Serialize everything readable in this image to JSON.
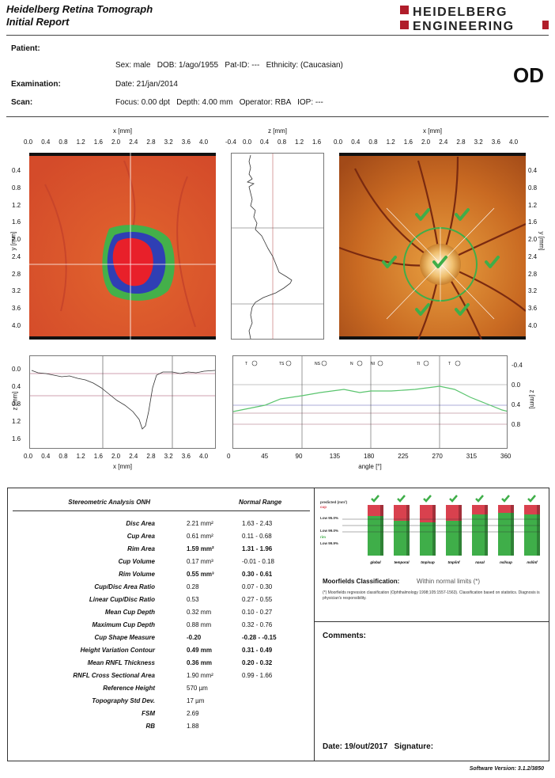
{
  "header": {
    "title_line1": "Heidelberg Retina Tomograph",
    "title_line2": "Initial Report",
    "logo_line1": "HEIDELBERG",
    "logo_line2": "ENGINEERING"
  },
  "patient": {
    "label": "Patient:",
    "details": "Sex: male   DOB: 1/ago/1955   Pat-ID: ---   Ethnicity: (Caucasian)",
    "eye": "OD"
  },
  "examination": {
    "label": "Examination:",
    "value": "Date: 21/jan/2014"
  },
  "scan": {
    "label": "Scan:",
    "value": "Focus: 0.00 dpt   Depth: 4.00 mm   Operator: RBA   IOP: ---"
  },
  "plots": {
    "x_label": "x [mm]",
    "y_label": "y [mm]",
    "z_label": "z [mm]",
    "angle_label": "angle [°]",
    "x_ticks": [
      "0.0",
      "0.4",
      "0.8",
      "1.2",
      "1.6",
      "2.0",
      "2.4",
      "2.8",
      "3.2",
      "3.6",
      "4.0"
    ],
    "y_ticks": [
      "0.4",
      "0.8",
      "1.2",
      "1.6",
      "2.0",
      "2.4",
      "2.8",
      "3.2",
      "3.6",
      "4.0"
    ],
    "z_ticks_top": [
      "-0.4",
      "0.0",
      "0.4",
      "0.8",
      "1.2",
      "1.6"
    ],
    "z_ticks_bottom": [
      "0.0",
      "0.4",
      "0.8",
      "1.2",
      "1.6"
    ],
    "z_ticks_right": [
      "-0.4",
      "0.0",
      "0.4",
      "0.8"
    ],
    "angle_ticks": [
      "0",
      "45",
      "90",
      "135",
      "180",
      "225",
      "270",
      "315",
      "360"
    ],
    "sector_labels": [
      "T",
      "TS",
      "NS",
      "N",
      "NI",
      "TI",
      "T"
    ]
  },
  "analysis": {
    "header_label": "Stereometric Analysis ONH",
    "header_range": "Normal Range",
    "rows": [
      {
        "label": "Disc Area",
        "value": "2.21  mm²",
        "range": "1.63 - 2.43",
        "bold": false
      },
      {
        "label": "Cup Area",
        "value": "0.61  mm²",
        "range": "0.11 - 0.68",
        "bold": false
      },
      {
        "label": "Rim Area",
        "value": "1.59  mm²",
        "range": "1.31 - 1.96",
        "bold": true
      },
      {
        "label": "Cup Volume",
        "value": "0.17  mm³",
        "range": "-0.01 - 0.18",
        "bold": false
      },
      {
        "label": "Rim Volume",
        "value": "0.55  mm³",
        "range": "0.30 - 0.61",
        "bold": true
      },
      {
        "label": "Cup/Disc Area Ratio",
        "value": "0.28",
        "range": "0.07 - 0.30",
        "bold": false
      },
      {
        "label": "Linear Cup/Disc Ratio",
        "value": "0.53",
        "range": "0.27 - 0.55",
        "bold": false
      },
      {
        "label": "Mean Cup Depth",
        "value": "0.32  mm",
        "range": "0.10 - 0.27",
        "bold": false
      },
      {
        "label": "Maximum Cup Depth",
        "value": "0.88  mm",
        "range": "0.32 - 0.76",
        "bold": false
      },
      {
        "label": "Cup Shape Measure",
        "value": "-0.20",
        "range": "-0.28 - -0.15",
        "bold": true
      },
      {
        "label": "Height Variation Contour",
        "value": "0.49  mm",
        "range": "0.31 - 0.49",
        "bold": true
      },
      {
        "label": "Mean RNFL Thickness",
        "value": "0.36  mm",
        "range": "0.20 - 0.32",
        "bold": true
      },
      {
        "label": "RNFL Cross Sectional Area",
        "value": "1.90  mm²",
        "range": "0.99 - 1.66",
        "bold": false
      },
      {
        "label": "Reference Height",
        "value": "570  µm",
        "range": "",
        "bold": false
      },
      {
        "label": "Topography Std Dev.",
        "value": "17  µm",
        "range": "",
        "bold": false
      },
      {
        "label": "FSM",
        "value": "2.69",
        "range": "",
        "bold": false
      },
      {
        "label": "RB",
        "value": "1.88",
        "range": "",
        "bold": false
      }
    ]
  },
  "moorfields": {
    "legend": [
      "predicted (mm²)",
      "cup",
      "Low 95.0%",
      "Low 99.0%",
      "rim",
      "Low 99.9%"
    ],
    "sectors": [
      "global",
      "temporal",
      "tmp/sup",
      "tmp/inf",
      "nasal",
      "nsl/sup",
      "nsl/inf"
    ],
    "classification_label": "Moorfields Classification:",
    "classification_value": "Within normal limits (*)",
    "footnote": "(*) Moorfields regression classification (Ophthalmology 1998;105:1557-1563). Classification based on statistics. Diagnosis is physician's responsibility.",
    "colors": {
      "cup": "#d9414e",
      "rim": "#3fae49",
      "check": "#3fae49"
    }
  },
  "comments": {
    "label": "Comments:"
  },
  "footer": {
    "date_signature": "Date: 19/out/2017   Signature:",
    "software_version": "Software Version: 3.1.2/3850"
  }
}
